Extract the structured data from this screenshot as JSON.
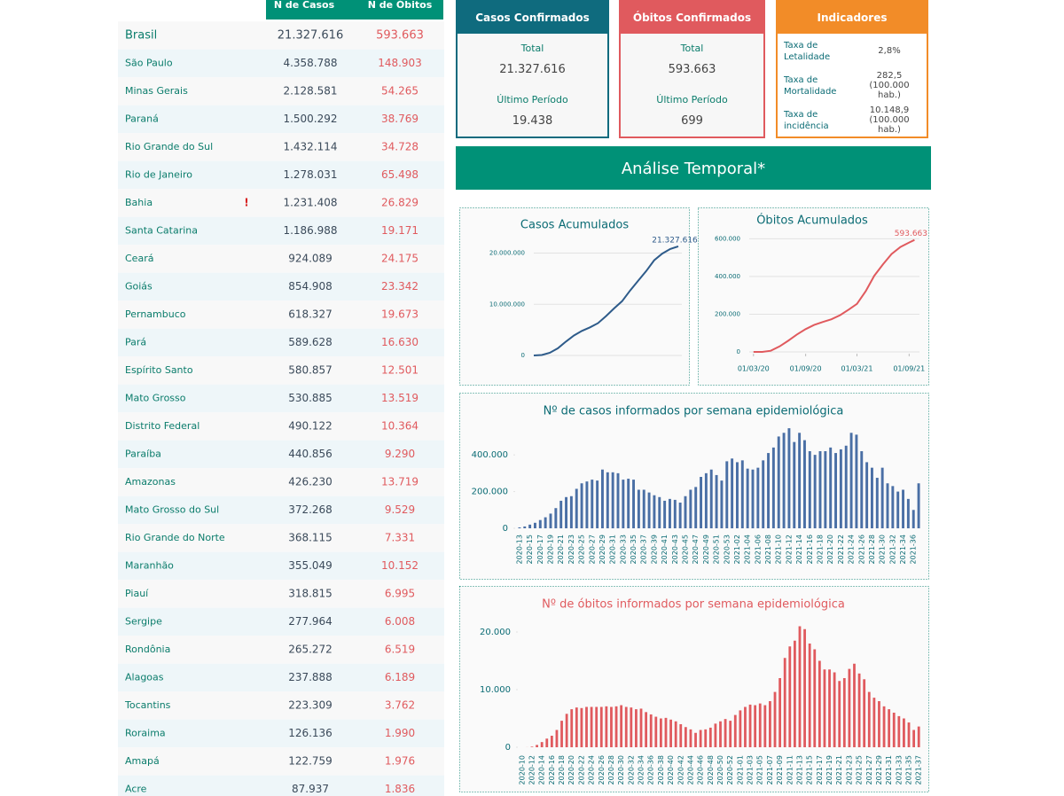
{
  "table": {
    "header": [
      "N de Casos",
      "N de Óbitos"
    ],
    "rows": [
      {
        "name": "Brasil",
        "cases": "21.327.616",
        "deaths": "593.663"
      },
      {
        "name": "São Paulo",
        "cases": "4.358.788",
        "deaths": "148.903"
      },
      {
        "name": "Minas Gerais",
        "cases": "2.128.581",
        "deaths": "54.265"
      },
      {
        "name": "Paraná",
        "cases": "1.500.292",
        "deaths": "38.769"
      },
      {
        "name": "Rio Grande do Sul",
        "cases": "1.432.114",
        "deaths": "34.728"
      },
      {
        "name": "Rio de Janeiro",
        "cases": "1.278.031",
        "deaths": "65.498"
      },
      {
        "name": "Bahia",
        "flag": "!",
        "cases": "1.231.408",
        "deaths": "26.829"
      },
      {
        "name": "Santa Catarina",
        "cases": "1.186.988",
        "deaths": "19.171"
      },
      {
        "name": "Ceará",
        "cases": "924.089",
        "deaths": "24.175"
      },
      {
        "name": "Goiás",
        "cases": "854.908",
        "deaths": "23.342"
      },
      {
        "name": "Pernambuco",
        "cases": "618.327",
        "deaths": "19.673"
      },
      {
        "name": "Pará",
        "cases": "589.628",
        "deaths": "16.630"
      },
      {
        "name": "Espírito Santo",
        "cases": "580.857",
        "deaths": "12.501"
      },
      {
        "name": "Mato Grosso",
        "cases": "530.885",
        "deaths": "13.519"
      },
      {
        "name": "Distrito Federal",
        "cases": "490.122",
        "deaths": "10.364"
      },
      {
        "name": "Paraíba",
        "cases": "440.856",
        "deaths": "9.290"
      },
      {
        "name": "Amazonas",
        "cases": "426.230",
        "deaths": "13.719"
      },
      {
        "name": "Mato Grosso do Sul",
        "cases": "372.268",
        "deaths": "9.529"
      },
      {
        "name": "Rio Grande do Norte",
        "cases": "368.115",
        "deaths": "7.331"
      },
      {
        "name": "Maranhão",
        "cases": "355.049",
        "deaths": "10.152"
      },
      {
        "name": "Piauí",
        "cases": "318.815",
        "deaths": "6.995"
      },
      {
        "name": "Sergipe",
        "cases": "277.964",
        "deaths": "6.008"
      },
      {
        "name": "Rondônia",
        "cases": "265.272",
        "deaths": "6.519"
      },
      {
        "name": "Alagoas",
        "cases": "237.888",
        "deaths": "6.189"
      },
      {
        "name": "Tocantins",
        "cases": "223.309",
        "deaths": "3.762"
      },
      {
        "name": "Roraima",
        "cases": "126.136",
        "deaths": "1.990"
      },
      {
        "name": "Amapá",
        "cases": "122.759",
        "deaths": "1.976"
      },
      {
        "name": "Acre",
        "cases": "87.937",
        "deaths": "1.836"
      }
    ]
  },
  "cards": [
    {
      "title": "Casos Confirmados",
      "total_label": "Total",
      "total": "21.327.616",
      "period_label": "Último Período",
      "period": "19.438"
    },
    {
      "title": "Óbitos Confirmados",
      "total_label": "Total",
      "total": "593.663",
      "period_label": "Último Período",
      "period": "699"
    }
  ],
  "indicators": {
    "title": "Indicadores",
    "rows": [
      {
        "label": "Taxa de Letalidade",
        "value": "2,8%"
      },
      {
        "label": "Taxa de Mortalidade",
        "value": "282,5 (100.000 hab.)"
      },
      {
        "label": "Taxa de incidência",
        "value": "10.148,9 (100.000 hab.)"
      }
    ]
  },
  "section_title": "Análise Temporal*",
  "chart_data": [
    {
      "type": "line",
      "title": "Casos Acumulados",
      "color": "#2e5b8a",
      "grid": true,
      "values": [
        5700,
        87000,
        515000,
        1400000,
        2700000,
        3900000,
        4800000,
        5500000,
        6300000,
        7700000,
        9200000,
        10600000,
        12700000,
        14600000,
        16500000,
        18600000,
        19900000,
        20800000,
        21327616
      ],
      "annotation": "21.327.616",
      "ylim": [
        0,
        22000000
      ],
      "yticks": [
        0,
        {
          "value": 10000000,
          "label": "10.000.000"
        },
        {
          "value": 20000000,
          "label": "20.000.000"
        }
      ]
    },
    {
      "type": "line",
      "title": "Óbitos Acumulados",
      "color": "#e05a5e",
      "grid": true,
      "x": [
        "2020-03-01",
        "2020-04-01",
        "2020-05-01",
        "2020-06-01",
        "2020-07-01",
        "2020-08-01",
        "2020-09-01",
        "2020-10-01",
        "2020-11-01",
        "2020-12-01",
        "2021-01-01",
        "2021-02-01",
        "2021-03-01",
        "2021-04-01",
        "2021-05-01",
        "2021-06-01",
        "2021-07-01",
        "2021-08-01",
        "2021-09-01",
        "2021-09-20"
      ],
      "values": [
        0,
        200,
        5900,
        29000,
        59000,
        92000,
        121000,
        143000,
        159000,
        173000,
        195000,
        225000,
        255000,
        322000,
        404000,
        465000,
        519000,
        556000,
        580000,
        593663
      ],
      "annotation": "593.663",
      "xlim": [
        "2020-02-15",
        "2021-09-25"
      ],
      "xticks": [
        {
          "value": "2020-03-01",
          "label": "01/03/20"
        },
        {
          "value": "2020-09-01",
          "label": "01/09/20"
        },
        {
          "value": "2021-03-01",
          "label": "01/03/21"
        },
        {
          "value": "2021-09-01",
          "label": "01/09/21"
        }
      ],
      "ylim": [
        0,
        630000
      ],
      "yticks": [
        0,
        {
          "value": 200000,
          "label": "200.000"
        },
        {
          "value": 400000,
          "label": "400.000"
        },
        {
          "value": 600000,
          "label": "600.000"
        }
      ]
    },
    {
      "type": "bar",
      "title": "Nº de casos informados por semana epidemiológica",
      "color": "#4a6fa5",
      "grid": false,
      "categories": [
        "2020-13",
        null,
        "2020-15",
        null,
        "2020-17",
        null,
        "2020-19",
        null,
        "2020-21",
        null,
        "2020-23",
        null,
        "2020-25",
        null,
        "2020-27",
        null,
        "2020-29",
        null,
        "2020-31",
        null,
        "2020-33",
        null,
        "2020-35",
        null,
        "2020-37",
        null,
        "2020-39",
        null,
        "2020-41",
        null,
        "2020-43",
        null,
        "2020-45",
        null,
        "2020-47",
        null,
        "2020-49",
        null,
        "2020-51",
        null,
        "2020-53",
        null,
        "2021-02",
        null,
        "2021-04",
        null,
        "2021-06",
        null,
        "2021-08",
        null,
        "2021-10",
        null,
        "2021-12",
        null,
        "2021-14",
        null,
        "2021-16",
        null,
        "2021-18",
        null,
        "2021-20",
        null,
        "2021-22",
        null,
        "2021-24",
        null,
        "2021-26",
        null,
        "2021-28",
        null,
        "2021-30",
        null,
        "2021-32",
        null,
        "2021-34",
        null,
        "2021-36",
        null
      ],
      "values": [
        5000,
        10000,
        20000,
        30000,
        45000,
        60000,
        80000,
        110000,
        150000,
        170000,
        175000,
        215000,
        245000,
        255000,
        265000,
        260000,
        320000,
        305000,
        305000,
        300000,
        265000,
        270000,
        265000,
        210000,
        210000,
        195000,
        180000,
        170000,
        150000,
        160000,
        155000,
        140000,
        175000,
        210000,
        225000,
        280000,
        300000,
        320000,
        290000,
        260000,
        365000,
        380000,
        360000,
        370000,
        325000,
        320000,
        330000,
        370000,
        410000,
        440000,
        500000,
        520000,
        545000,
        470000,
        520000,
        480000,
        420000,
        400000,
        420000,
        420000,
        440000,
        410000,
        430000,
        450000,
        520000,
        510000,
        420000,
        360000,
        330000,
        275000,
        330000,
        245000,
        230000,
        200000,
        210000,
        160000,
        100000,
        245000
      ],
      "ylim": [
        0,
        560000
      ],
      "yticks": [
        0,
        {
          "value": 200000,
          "label": "200.000"
        },
        {
          "value": 400000,
          "label": "400.000"
        }
      ]
    },
    {
      "type": "bar",
      "title": "Nº de óbitos informados por semana epidemiológica",
      "color": "#e05a5e",
      "grid": false,
      "categories": [
        "2020-10",
        null,
        "2020-12",
        null,
        "2020-14",
        null,
        "2020-16",
        null,
        "2020-18",
        null,
        "2020-20",
        null,
        "2020-22",
        null,
        "2020-24",
        null,
        "2020-26",
        null,
        "2020-28",
        null,
        "2020-30",
        null,
        "2020-32",
        null,
        "2020-34",
        null,
        "2020-36",
        null,
        "2020-38",
        null,
        "2020-40",
        null,
        "2020-42",
        null,
        "2020-44",
        null,
        "2020-46",
        null,
        "2020-48",
        null,
        "2020-50",
        null,
        "2020-52",
        null,
        "2021-01",
        null,
        "2021-03",
        null,
        "2021-05",
        null,
        "2021-07",
        null,
        "2021-09",
        null,
        "2021-11",
        null,
        "2021-13",
        null,
        "2021-15",
        null,
        "2021-17",
        null,
        "2021-19",
        null,
        "2021-21",
        null,
        "2021-23",
        null,
        "2021-25",
        null,
        "2021-27",
        null,
        "2021-29",
        null,
        "2021-31",
        null,
        "2021-33",
        null,
        "2021-35",
        null,
        "2021-37"
      ],
      "values": [
        0,
        10,
        100,
        400,
        900,
        1500,
        2000,
        3000,
        4600,
        5800,
        6600,
        6900,
        6800,
        7000,
        7000,
        7000,
        7000,
        7100,
        7000,
        7100,
        7300,
        7000,
        6900,
        6600,
        6700,
        6100,
        5700,
        5300,
        5000,
        5100,
        4800,
        4500,
        4000,
        3500,
        3100,
        2500,
        3000,
        3100,
        3400,
        4100,
        4500,
        4900,
        4600,
        5600,
        6400,
        7000,
        7400,
        7300,
        7600,
        7300,
        8000,
        9600,
        12000,
        15500,
        17500,
        18500,
        21000,
        20500,
        18000,
        17000,
        15000,
        13500,
        13500,
        13000,
        11500,
        12000,
        13600,
        14500,
        12800,
        11800,
        9600,
        8600,
        8000,
        7100,
        6600,
        6000,
        5400,
        5000,
        4300,
        3000,
        3600
      ],
      "ylim": [
        0,
        22000
      ],
      "yticks": [
        0,
        {
          "value": 10000,
          "label": "10.000"
        },
        {
          "value": 20000,
          "label": "20.000"
        }
      ]
    }
  ]
}
